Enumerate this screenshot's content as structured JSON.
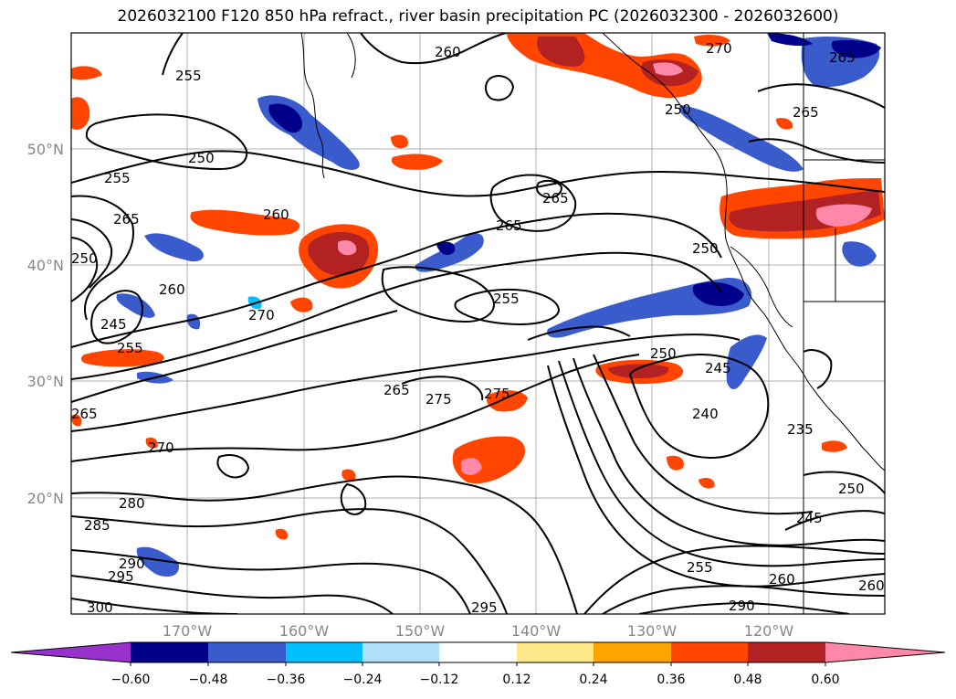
{
  "title": "2026032100 F120 850 hPa refract., river basin precipitation PC (2026032300 - 2026032600)",
  "lat_labels": [
    "50°N",
    "40°N",
    "30°N",
    "20°N"
  ],
  "lon_labels": [
    "170°W",
    "160°W",
    "150°W",
    "140°W",
    "130°W",
    "120°W"
  ],
  "contour_labels": [
    "255",
    "260",
    "270",
    "250",
    "255",
    "265",
    "265",
    "260",
    "265",
    "265",
    "250",
    "250",
    "245",
    "255",
    "260",
    "270",
    "255",
    "250",
    "245",
    "265",
    "275",
    "275",
    "240",
    "235",
    "270",
    "280",
    "285",
    "290",
    "295",
    "300",
    "295",
    "255",
    "260",
    "290",
    "250",
    "245",
    "265",
    "265",
    "260",
    "250"
  ],
  "colorbar": {
    "ticks": [
      "−0.60",
      "−0.48",
      "−0.36",
      "−0.24",
      "−0.12",
      "0.12",
      "0.24",
      "0.36",
      "0.48",
      "0.60"
    ],
    "colors": [
      "#9932cc",
      "#00008b",
      "#3a5bcc",
      "#00bfff",
      "#b0e0fa",
      "#ffffff",
      "#ffe88a",
      "#ffa500",
      "#ff4500",
      "#b22222",
      "#ff88aa"
    ]
  }
}
